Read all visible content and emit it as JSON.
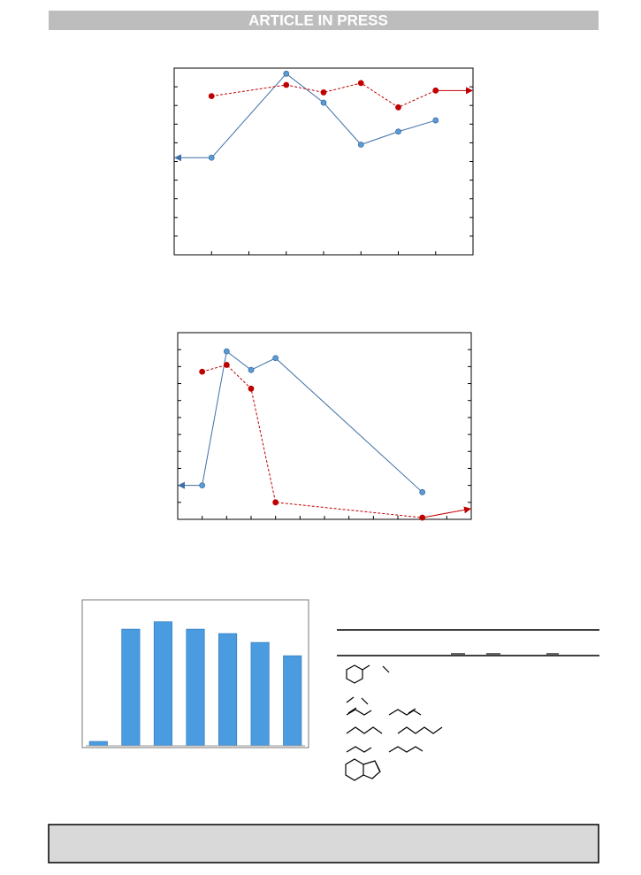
{
  "header": {
    "title": "ARTICLE IN PRESS"
  },
  "chart_data": [
    {
      "type": "line",
      "xlim": [
        0,
        8
      ],
      "ylim": [
        0,
        10
      ],
      "xticks": [
        0,
        1,
        2,
        3,
        4,
        5,
        6,
        7,
        8
      ],
      "yticks": [
        0,
        1,
        2,
        3,
        4,
        5,
        6,
        7,
        8,
        9,
        10
      ],
      "series": [
        {
          "color": "#3d6fa6",
          "x": [
            1,
            3,
            4,
            5,
            6,
            7
          ],
          "values": [
            5.2,
            9.7,
            8.15,
            5.9,
            6.6,
            7.2
          ]
        },
        {
          "color": "#c00000",
          "x": [
            1,
            3,
            4,
            5,
            6,
            7
          ],
          "values": [
            8.5,
            9.1,
            8.7,
            9.2,
            7.9,
            8.8
          ]
        }
      ]
    },
    {
      "type": "line",
      "xlim": [
        0,
        12
      ],
      "ylim": [
        0,
        11
      ],
      "xticks": [
        0,
        1,
        2,
        3,
        4,
        5,
        6,
        7,
        8,
        9,
        10,
        11,
        12
      ],
      "yticks": [
        0,
        1,
        2,
        3,
        4,
        5,
        6,
        7,
        8,
        9,
        10,
        11
      ],
      "series": [
        {
          "color": "#3d6fa6",
          "x": [
            1,
            2,
            3,
            4,
            10
          ],
          "values": [
            2.0,
            9.9,
            8.8,
            9.5,
            1.6
          ]
        },
        {
          "color": "#c00000",
          "x": [
            1,
            2,
            3,
            4,
            10
          ],
          "values": [
            8.7,
            9.1,
            7.7,
            1.0,
            0.1
          ]
        }
      ]
    },
    {
      "type": "bar",
      "ylim": [
        0,
        10
      ],
      "color": "#4a9be0",
      "categories": [
        null,
        null,
        null,
        null,
        null,
        null,
        null
      ],
      "values": [
        0.3,
        7.9,
        8.4,
        7.9,
        7.6,
        7.0,
        6.1
      ]
    }
  ]
}
